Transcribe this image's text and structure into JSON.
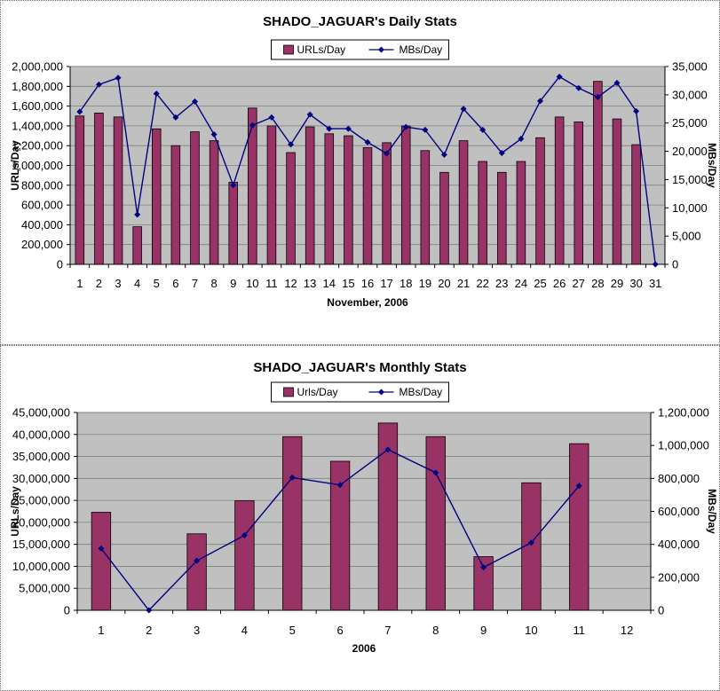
{
  "colors": {
    "bar": "#993366",
    "bar_stroke": "#000000",
    "line": "#000080",
    "plot_bg": "#c0c0c0",
    "grid": "#808080"
  },
  "chart_data": [
    {
      "type": "bar",
      "title": "SHADO_JAGUAR's Daily Stats",
      "xlabel": "November, 2006",
      "ylabel": "URLs/Day",
      "y2label": "MBs/Day",
      "legend": [
        "URLs/Day",
        "MBs/Day"
      ],
      "legend_position": "top",
      "categories": [
        "1",
        "2",
        "3",
        "4",
        "5",
        "6",
        "7",
        "8",
        "9",
        "10",
        "11",
        "12",
        "13",
        "14",
        "15",
        "16",
        "17",
        "18",
        "19",
        "20",
        "21",
        "22",
        "23",
        "24",
        "25",
        "26",
        "27",
        "28",
        "29",
        "30",
        "31"
      ],
      "ylim": [
        0,
        2000000
      ],
      "y2lim": [
        0,
        35000
      ],
      "yticks": [
        "0",
        "200,000",
        "400,000",
        "600,000",
        "800,000",
        "1,000,000",
        "1,200,000",
        "1,400,000",
        "1,600,000",
        "1,800,000",
        "2,000,000"
      ],
      "y2ticks": [
        "0",
        "5,000",
        "10,000",
        "15,000",
        "20,000",
        "25,000",
        "30,000",
        "35,000"
      ],
      "grid": true,
      "series": [
        {
          "name": "URLs/Day",
          "kind": "bar",
          "axis": "left",
          "values": [
            1500000,
            1530000,
            1490000,
            380000,
            1370000,
            1200000,
            1340000,
            1250000,
            830000,
            1580000,
            1400000,
            1130000,
            1390000,
            1320000,
            1300000,
            1180000,
            1230000,
            1400000,
            1150000,
            930000,
            1250000,
            1040000,
            930000,
            1040000,
            1280000,
            1490000,
            1440000,
            1850000,
            1470000,
            1210000,
            0
          ]
        },
        {
          "name": "MBs/Day",
          "kind": "line",
          "axis": "right",
          "values": [
            27000,
            31800,
            33000,
            8800,
            30200,
            26000,
            28800,
            23000,
            14000,
            24600,
            26000,
            21200,
            26500,
            24000,
            24000,
            21600,
            19600,
            24300,
            23800,
            19400,
            27500,
            23800,
            19700,
            22200,
            28900,
            33200,
            31200,
            29600,
            32100,
            27100,
            0
          ]
        }
      ]
    },
    {
      "type": "bar",
      "title": "SHADO_JAGUAR's Monthly Stats",
      "xlabel": "2006",
      "ylabel": "URLs/Day",
      "y2label": "MBs/Day",
      "legend": [
        "Urls/Day",
        "MBs/Day"
      ],
      "legend_position": "top",
      "categories": [
        "1",
        "2",
        "3",
        "4",
        "5",
        "6",
        "7",
        "8",
        "9",
        "10",
        "11",
        "12"
      ],
      "ylim": [
        0,
        45000000
      ],
      "y2lim": [
        0,
        1200000
      ],
      "yticks": [
        "0",
        "5,000,000",
        "10,000,000",
        "15,000,000",
        "20,000,000",
        "25,000,000",
        "30,000,000",
        "35,000,000",
        "40,000,000",
        "45,000,000"
      ],
      "y2ticks": [
        "0",
        "200,000",
        "400,000",
        "600,000",
        "800,000",
        "1,000,000",
        "1,200,000"
      ],
      "grid": true,
      "series": [
        {
          "name": "Urls/Day",
          "kind": "bar",
          "axis": "left",
          "values": [
            22300000,
            null,
            17400000,
            24900000,
            39500000,
            33900000,
            42600000,
            39500000,
            12200000,
            29000000,
            37900000,
            null
          ]
        },
        {
          "name": "MBs/Day",
          "kind": "line",
          "axis": "right",
          "values": [
            375000,
            0,
            300000,
            455000,
            805000,
            760000,
            975000,
            835000,
            260000,
            410000,
            755000,
            null
          ]
        }
      ]
    }
  ]
}
